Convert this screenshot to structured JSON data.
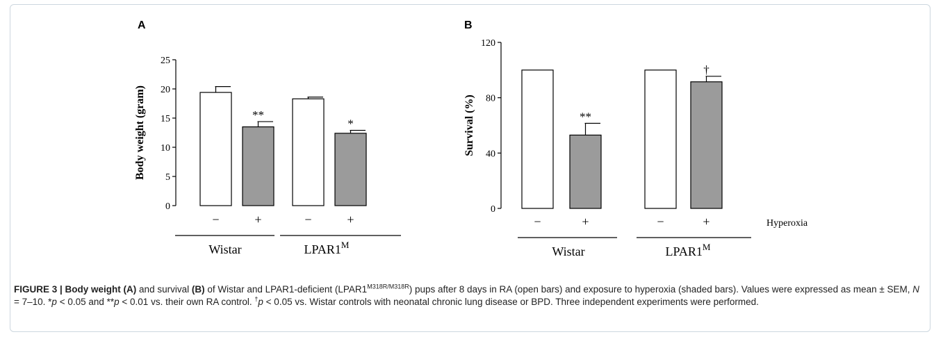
{
  "chart_data": [
    {
      "type": "bar",
      "panel_label": "A",
      "ylabel": "Body weight (gram)",
      "ylim": [
        0,
        25
      ],
      "yticks": [
        "0",
        "5",
        "10",
        "15",
        "20",
        "25"
      ],
      "ytick_values": [
        0,
        5,
        10,
        15,
        20,
        25
      ],
      "bars": [
        {
          "group": "Wistar",
          "hyperoxia": "−",
          "value": 19.4,
          "error": 1.0,
          "fill": "open",
          "annotation": ""
        },
        {
          "group": "Wistar",
          "hyperoxia": "+",
          "value": 13.5,
          "error": 0.9,
          "fill": "shaded",
          "annotation": "**"
        },
        {
          "group": "LPAR1M",
          "hyperoxia": "−",
          "value": 18.3,
          "error": 0.3,
          "fill": "open",
          "annotation": ""
        },
        {
          "group": "LPAR1M",
          "hyperoxia": "+",
          "value": 12.4,
          "error": 0.5,
          "fill": "shaded",
          "annotation": "*"
        }
      ],
      "groups": [
        {
          "label": "Wistar",
          "sup": ""
        },
        {
          "label": "LPAR1",
          "sup": "M"
        }
      ]
    },
    {
      "type": "bar",
      "panel_label": "B",
      "ylabel": "Survival (%)",
      "ylim": [
        0,
        120
      ],
      "yticks": [
        "0",
        "40",
        "80",
        "120"
      ],
      "ytick_values": [
        0,
        40,
        80,
        120
      ],
      "bars": [
        {
          "group": "Wistar",
          "hyperoxia": "−",
          "value": 100,
          "error": 0,
          "fill": "open",
          "annotation": ""
        },
        {
          "group": "Wistar",
          "hyperoxia": "+",
          "value": 53,
          "error": 8.5,
          "fill": "shaded",
          "annotation": "**"
        },
        {
          "group": "LPAR1M",
          "hyperoxia": "−",
          "value": 100,
          "error": 0,
          "fill": "open",
          "annotation": ""
        },
        {
          "group": "LPAR1M",
          "hyperoxia": "+",
          "value": 91.5,
          "error": 4,
          "fill": "shaded",
          "annotation": "†"
        }
      ],
      "groups": [
        {
          "label": "Wistar",
          "sup": ""
        },
        {
          "label": "LPAR1",
          "sup": "M"
        }
      ],
      "row_label": "Hyperoxia"
    }
  ],
  "colors": {
    "shaded_bar": "#9b9b9b",
    "open_bar": "#ffffff",
    "stroke": "#000000",
    "frame_border": "#cdd7df"
  },
  "caption": {
    "figure_label": "FIGURE 3 | Body weight ",
    "a_ref": "(A)",
    "t1": " and survival ",
    "b_ref": "(B)",
    "t2": " of Wistar and LPAR1-deficient (LPAR1",
    "sup1": "M318R/M318R",
    "t3": ") pups after 8 days in RA (open bars) and exposure to hyperoxia (shaded bars). Values were expressed as mean ± SEM, ",
    "n_var": "N",
    "t4": " = 7–10. *",
    "p1": "p",
    "t5": " < 0.05 and **",
    "p2": "p",
    "t6": " < 0.01 vs. their own RA control. ",
    "dagger": "†",
    "p3": "p",
    "t7": " < 0.05 vs. Wistar controls with neonatal chronic lung disease or BPD. Three independent experiments were performed."
  }
}
